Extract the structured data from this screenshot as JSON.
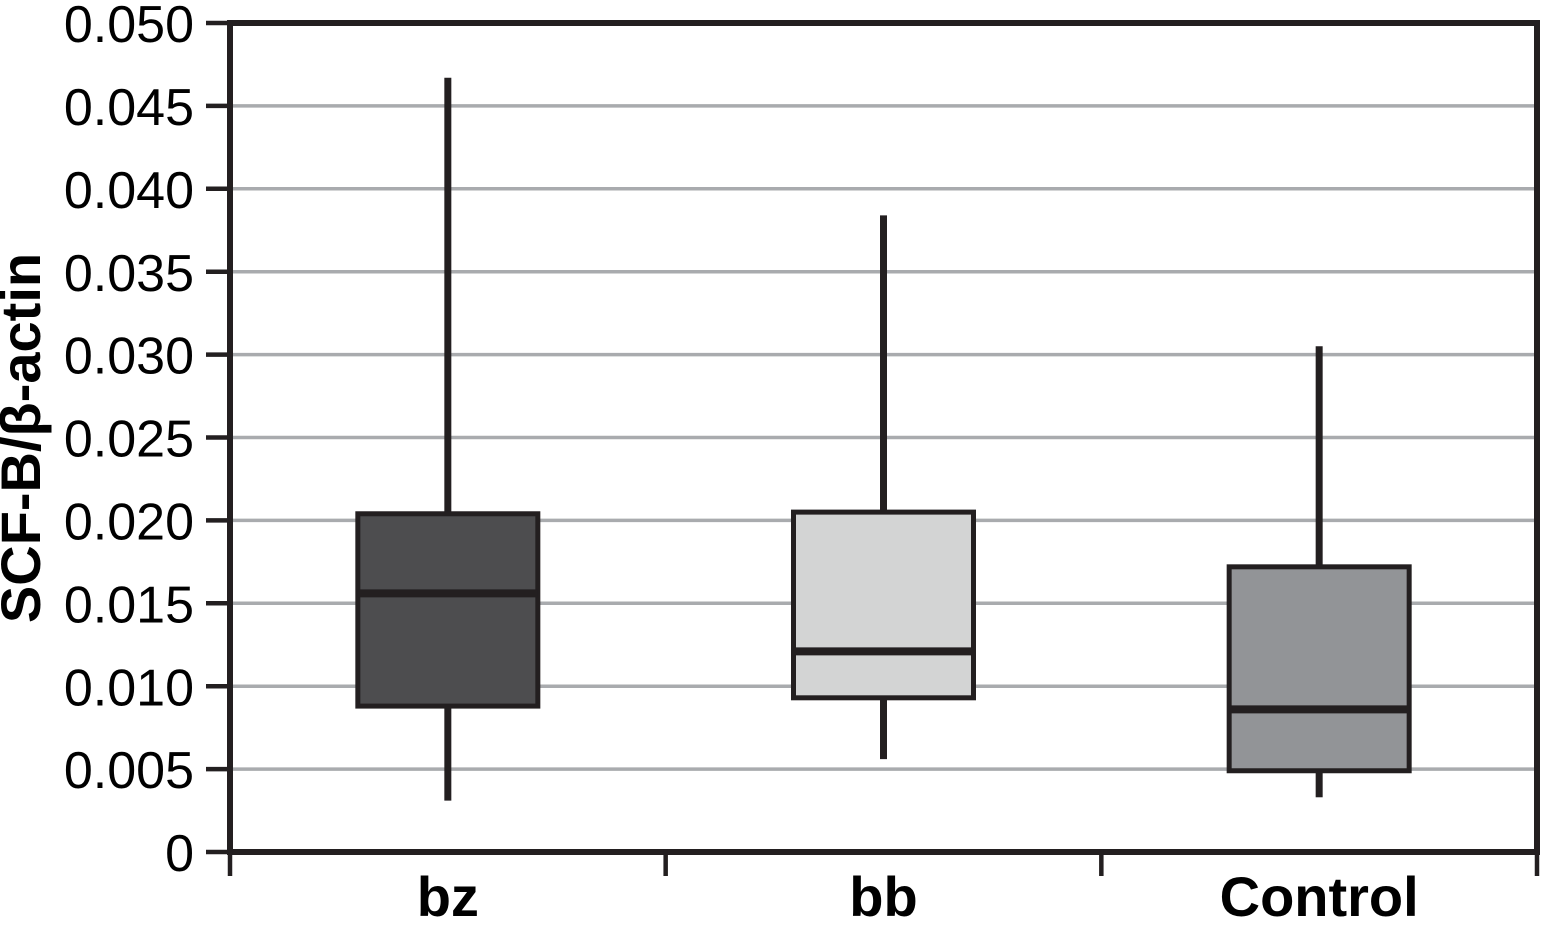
{
  "figure": {
    "background": "#ffffff"
  },
  "chart_data": {
    "type": "box",
    "title": "",
    "xlabel": "",
    "ylabel": "SCF-B/β-actin",
    "categories": [
      "bz",
      "bb",
      "Control"
    ],
    "ylim": [
      0,
      0.05
    ],
    "ytick_step": 0.005,
    "ytick_labels": [
      "0",
      "0.005",
      "0.010",
      "0.015",
      "0.020",
      "0.025",
      "0.030",
      "0.035",
      "0.040",
      "0.045",
      "0.050"
    ],
    "grid": "horizontal-only",
    "legend_position": "none",
    "whisker_caps": false,
    "boxes": [
      {
        "category": "bz",
        "whisker_low": 0.0031,
        "q1": 0.0088,
        "median": 0.0156,
        "q3": 0.0204,
        "whisker_high": 0.0467,
        "fill": "#4d4d4f"
      },
      {
        "category": "bb",
        "whisker_low": 0.0056,
        "q1": 0.0093,
        "median": 0.0121,
        "q3": 0.0205,
        "whisker_high": 0.0384,
        "fill": "#d3d4d4"
      },
      {
        "category": "Control",
        "whisker_low": 0.0033,
        "q1": 0.0049,
        "median": 0.0086,
        "q3": 0.0172,
        "whisker_high": 0.0305,
        "fill": "#929497"
      }
    ],
    "colors": {
      "axis": "#231f20",
      "gridline": "#a9abae",
      "box_border": "#231f20",
      "text": "#000000"
    }
  }
}
